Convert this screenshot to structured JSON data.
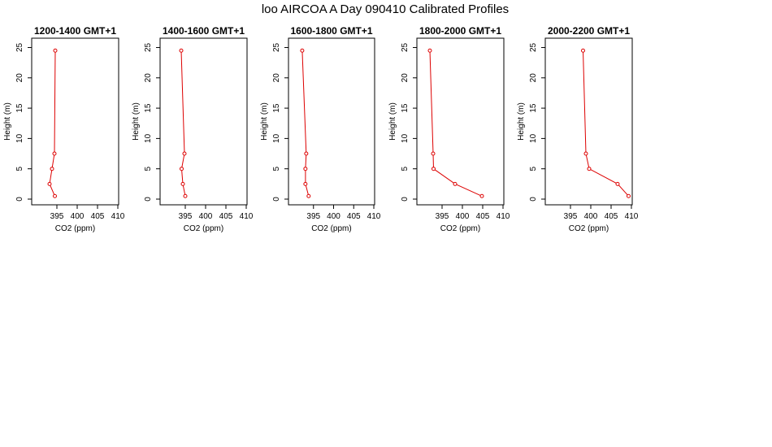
{
  "title": "loo AIRCOA A  Day 090410  Calibrated Profiles",
  "series_color": "#dd0000",
  "chart_data": [
    {
      "type": "line",
      "title": "1200-1400 GMT+1",
      "xlabel": "CO2 (ppm)",
      "ylabel": "Height (m)",
      "xlim": [
        390,
        410
      ],
      "ylim": [
        0,
        25
      ],
      "xticks": [
        395,
        400,
        405,
        410
      ],
      "yticks": [
        0,
        5,
        10,
        15,
        20,
        25
      ],
      "x": [
        394.5,
        393.2,
        393.8,
        394.4,
        394.6
      ],
      "y": [
        0.5,
        2.5,
        5,
        7.5,
        24.5
      ]
    },
    {
      "type": "line",
      "title": "1400-1600 GMT+1",
      "xlabel": "CO2 (ppm)",
      "ylabel": "Height (m)",
      "xlim": [
        390,
        410
      ],
      "ylim": [
        0,
        25
      ],
      "xticks": [
        395,
        400,
        405,
        410
      ],
      "yticks": [
        0,
        5,
        10,
        15,
        20,
        25
      ],
      "x": [
        395.0,
        394.4,
        394.1,
        394.8,
        394.0
      ],
      "y": [
        0.5,
        2.5,
        5,
        7.5,
        24.5
      ]
    },
    {
      "type": "line",
      "title": "1600-1800 GMT+1",
      "xlabel": "CO2 (ppm)",
      "ylabel": "Height (m)",
      "xlim": [
        390,
        410
      ],
      "ylim": [
        0,
        25
      ],
      "xticks": [
        395,
        400,
        405,
        410
      ],
      "yticks": [
        0,
        5,
        10,
        15,
        20,
        25
      ],
      "x": [
        393.8,
        393.0,
        393.0,
        393.2,
        392.2
      ],
      "y": [
        0.5,
        2.5,
        5,
        7.5,
        24.5
      ]
    },
    {
      "type": "line",
      "title": "1800-2000 GMT+1",
      "xlabel": "CO2 (ppm)",
      "ylabel": "Height (m)",
      "xlim": [
        390,
        410
      ],
      "ylim": [
        0,
        25
      ],
      "xticks": [
        395,
        400,
        405,
        410
      ],
      "yticks": [
        0,
        5,
        10,
        15,
        20,
        25
      ],
      "x": [
        404.8,
        398.2,
        392.9,
        392.8,
        392.0
      ],
      "y": [
        0.5,
        2.5,
        5,
        7.5,
        24.5
      ]
    },
    {
      "type": "line",
      "title": "2000-2200 GMT+1",
      "xlabel": "CO2 (ppm)",
      "ylabel": "Height (m)",
      "xlim": [
        390,
        410
      ],
      "ylim": [
        0,
        25
      ],
      "xticks": [
        395,
        400,
        405,
        410
      ],
      "yticks": [
        0,
        5,
        10,
        15,
        20,
        25
      ],
      "x": [
        409.3,
        406.6,
        399.6,
        398.8,
        398.1
      ],
      "y": [
        0.5,
        2.5,
        5,
        7.5,
        24.5
      ]
    }
  ]
}
